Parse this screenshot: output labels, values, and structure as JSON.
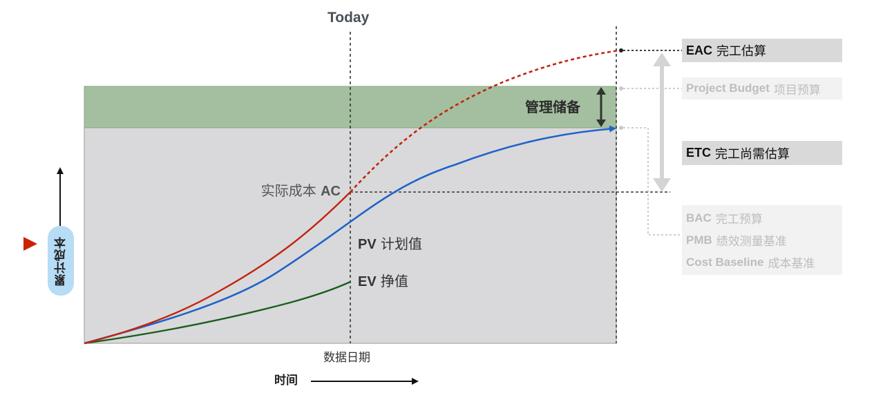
{
  "top_label": "Today",
  "reserve_label": "管理储备",
  "ac": {
    "prefix": "实际成本",
    "code": "AC"
  },
  "pv": {
    "code": "PV",
    "text": "计划值"
  },
  "ev": {
    "code": "EV",
    "text": "挣值"
  },
  "x_date_label": "数据日期",
  "x_axis_label": "时间",
  "y_axis_label": "累计成本",
  "legend_right": {
    "eac": {
      "code": "EAC",
      "text": "完工估算"
    },
    "budget": {
      "code": "Project Budget",
      "text": "项目预算"
    },
    "etc": {
      "code": "ETC",
      "text": "完工尚需估算"
    },
    "bac": [
      {
        "code": "BAC",
        "text": "完工预算"
      },
      {
        "code": "PMB",
        "text": "绩效测量基准"
      },
      {
        "code": "Cost Baseline",
        "text": "成本基准"
      }
    ]
  },
  "colors": {
    "ac_line": "#c0250f",
    "pv_line": "#1f63c8",
    "ev_line": "#1c5e1c",
    "reserve_band": "#a3bf9f",
    "plot_area": "#d9d9db",
    "pill": "#b7dcf5",
    "marker": "#cc2200"
  }
}
